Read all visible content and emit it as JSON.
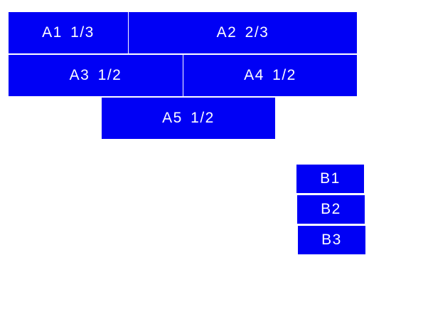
{
  "colors": {
    "box": "#0000f5",
    "text": "#ffffff"
  },
  "a_boxes": [
    {
      "label": "A1  1/3"
    },
    {
      "label": "A2  2/3"
    },
    {
      "label": "A3  1/2"
    },
    {
      "label": "A4  1/2"
    },
    {
      "label": "A5  1/2"
    }
  ],
  "b_boxes": [
    {
      "label": "B1"
    },
    {
      "label": "B2"
    },
    {
      "label": "B3"
    }
  ]
}
